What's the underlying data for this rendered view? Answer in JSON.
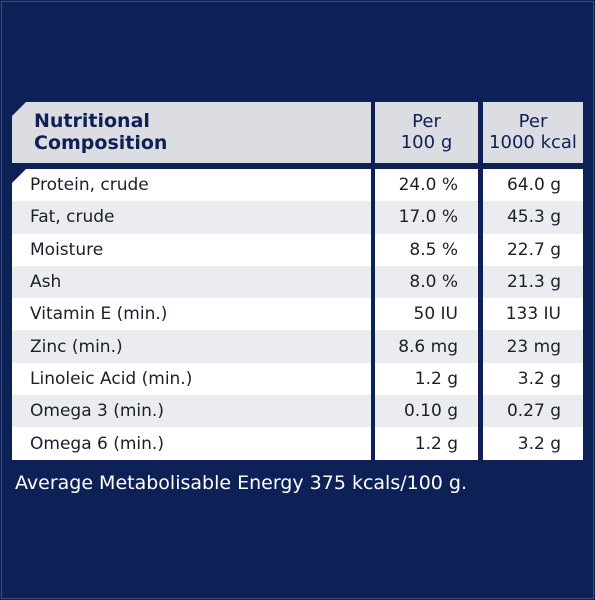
{
  "table": {
    "header": {
      "label_line1": "Nutritional",
      "label_line2": "Composition",
      "col1_line1": "Per",
      "col1_line2": "100 g",
      "col2_line1": "Per",
      "col2_line2": "1000 kcal"
    },
    "rows": [
      {
        "nutrient": "Protein, crude",
        "per100g": "24.0 %",
        "per1000kcal": "64.0 g"
      },
      {
        "nutrient": "Fat, crude",
        "per100g": "17.0 %",
        "per1000kcal": "45.3 g"
      },
      {
        "nutrient": "Moisture",
        "per100g": "8.5 %",
        "per1000kcal": "22.7 g"
      },
      {
        "nutrient": "Ash",
        "per100g": "8.0 %",
        "per1000kcal": "21.3 g"
      },
      {
        "nutrient": "Vitamin E (min.)",
        "per100g": "50 IU",
        "per1000kcal": "133 IU"
      },
      {
        "nutrient": "Zinc (min.)",
        "per100g": "8.6 mg",
        "per1000kcal": "23 mg"
      },
      {
        "nutrient": "Linoleic Acid (min.)",
        "per100g": "1.2 g",
        "per1000kcal": "3.2 g"
      },
      {
        "nutrient": "Omega 3 (min.)",
        "per100g": "0.10 g",
        "per1000kcal": "0.27 g"
      },
      {
        "nutrient": "Omega 6 (min.)",
        "per100g": "1.2 g",
        "per1000kcal": "3.2 g"
      }
    ]
  },
  "footer": "Average Metabolisable Energy 375 kcals/100 g.",
  "colors": {
    "background": "#0e2157",
    "header_bg": "#dcdde3",
    "row_alt_bg": "#ebecef",
    "row_bg": "#ffffff"
  }
}
